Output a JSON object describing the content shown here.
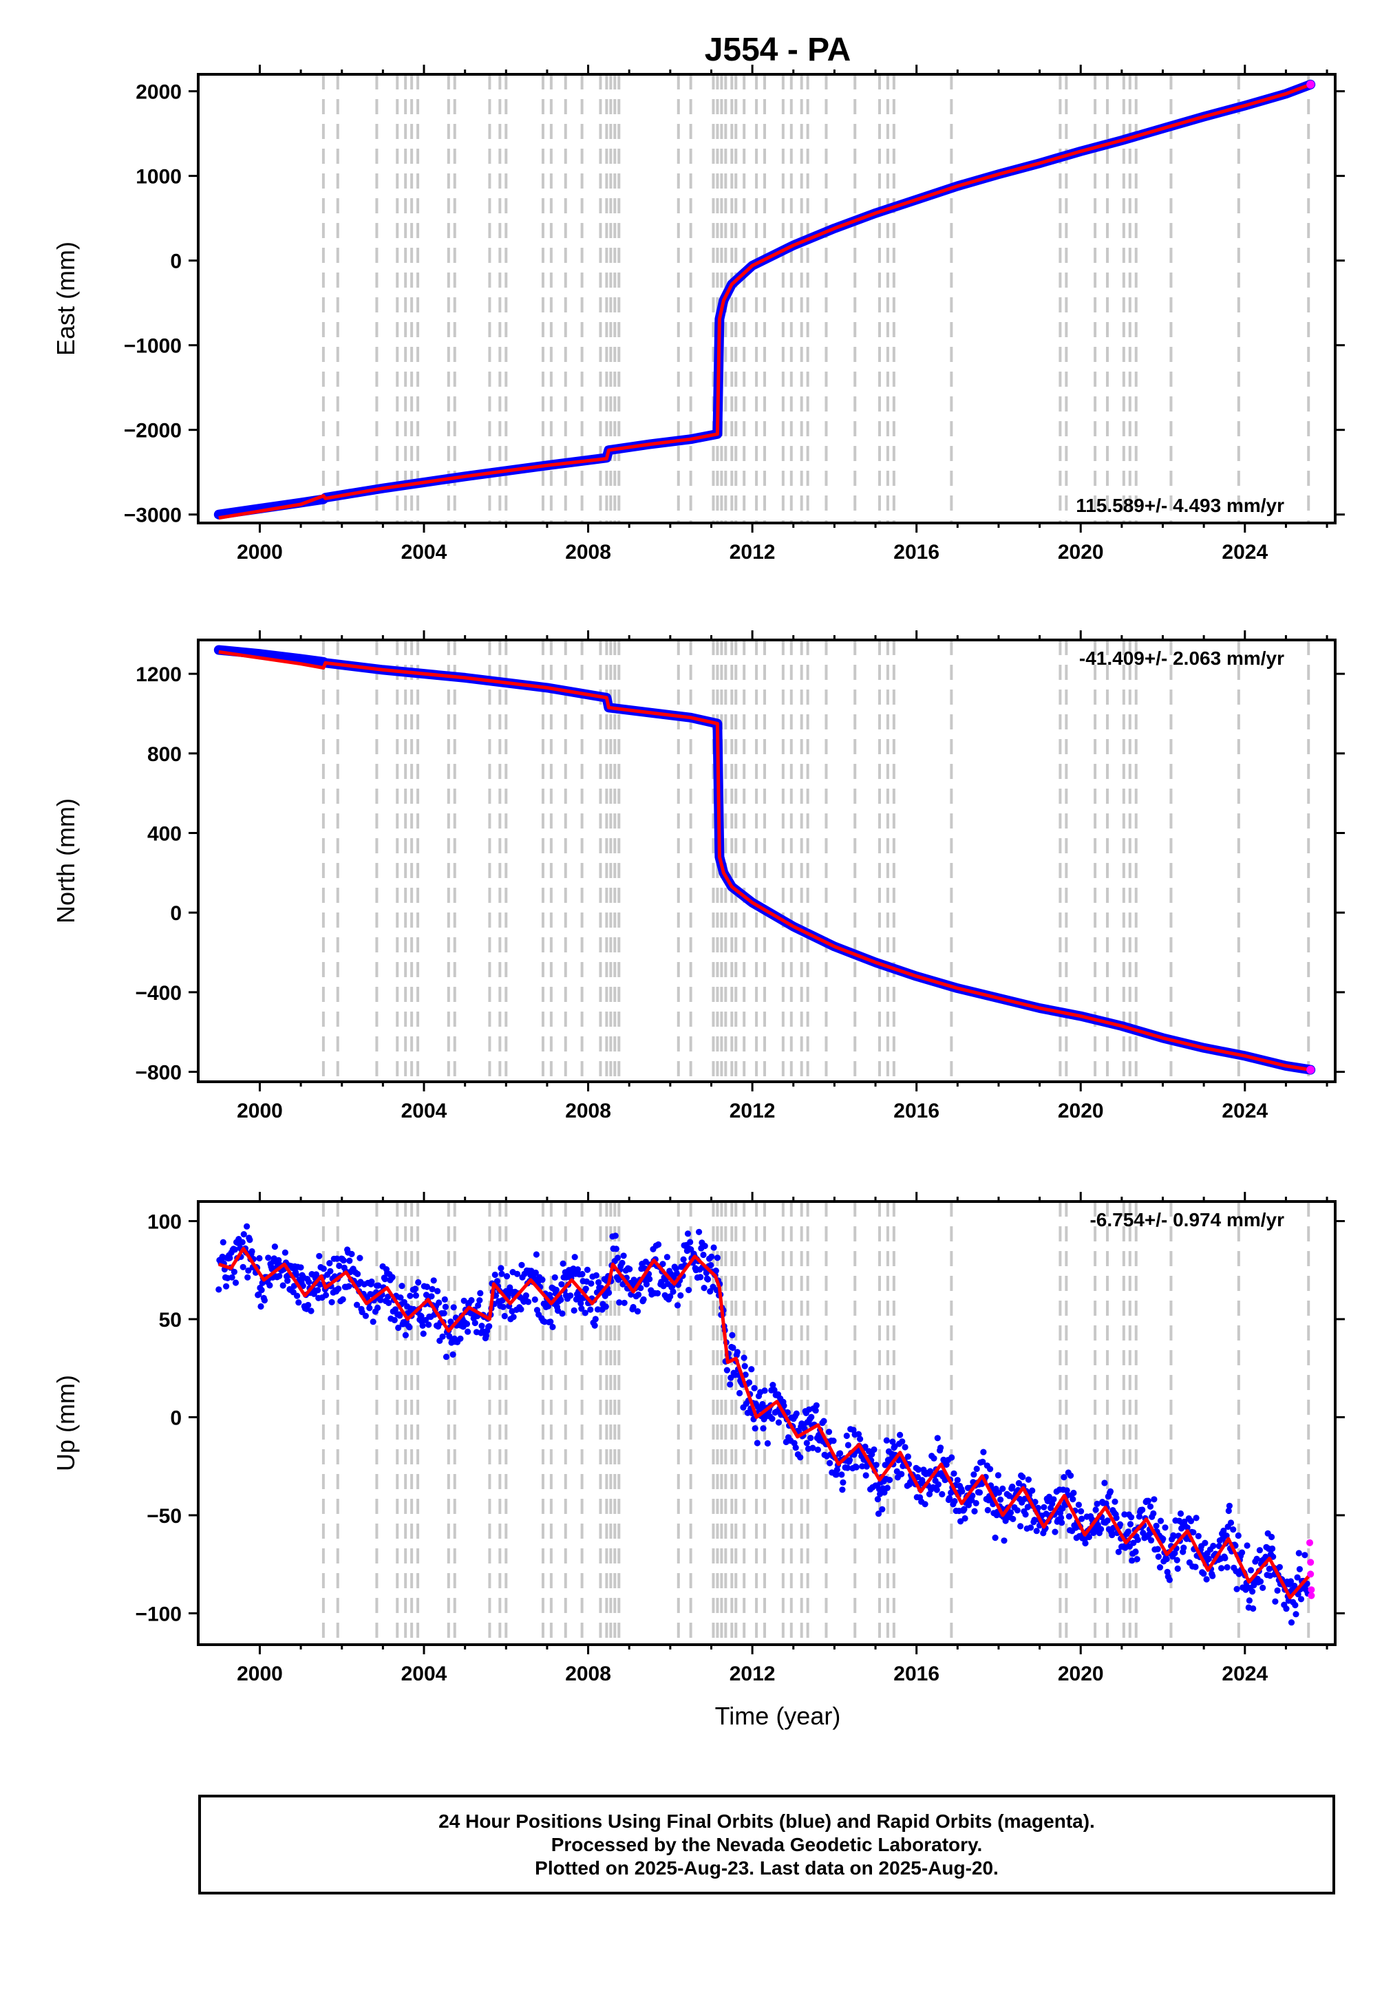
{
  "title": "J554 - PA",
  "x_axis_label": "Time (year)",
  "colors": {
    "final_orbits": "#0000ff",
    "rapid_orbits": "#ff00ff",
    "model_fit": "#ff0000",
    "event_lines": "#c8c8c8"
  },
  "event_lines_years": [
    2001.55,
    2001.9,
    2002.85,
    2003.35,
    2003.55,
    2003.7,
    2003.85,
    2004.6,
    2004.75,
    2005.6,
    2005.85,
    2006.0,
    2006.9,
    2007.1,
    2007.45,
    2007.85,
    2008.3,
    2008.45,
    2008.55,
    2008.65,
    2008.75,
    2010.2,
    2010.5,
    2011.05,
    2011.15,
    2011.25,
    2011.35,
    2011.5,
    2011.6,
    2011.8,
    2012.1,
    2012.3,
    2012.75,
    2012.95,
    2013.2,
    2013.35,
    2013.8,
    2014.5,
    2015.1,
    2015.3,
    2015.45,
    2016.85,
    2019.5,
    2019.65,
    2020.35,
    2020.65,
    2021.05,
    2021.2,
    2021.35,
    2022.2,
    2023.85,
    2025.55
  ],
  "chart_data": [
    {
      "type": "scatter",
      "component": "east",
      "ylabel": "East (mm)",
      "xlim": [
        1998.5,
        2026.2
      ],
      "ylim": [
        -3100,
        2200
      ],
      "x_ticks": [
        2000,
        2004,
        2008,
        2012,
        2016,
        2020,
        2024
      ],
      "y_ticks": [
        -3000,
        -2000,
        -1000,
        0,
        1000,
        2000
      ],
      "y_tick_labels": [
        "−3000",
        "−2000",
        "−1000",
        "0",
        "1000",
        "2000"
      ],
      "x_tick_labels": [
        "2000",
        "2004",
        "2008",
        "2012",
        "2016",
        "2020",
        "2024"
      ],
      "rate_text": "115.589+/- 4.493 mm/yr",
      "rate_position": "bottom-right",
      "series": [
        {
          "style": "final_orbits",
          "x": [
            1999.0,
            2000.0,
            2001.0,
            2001.55,
            2001.6,
            2003.0,
            2005.0,
            2007.0,
            2008.45,
            2008.5,
            2009.5,
            2010.5,
            2011.15,
            2011.2,
            2011.3,
            2011.5,
            2012.0,
            2013.0,
            2014.0,
            2015.0,
            2016.0,
            2017.0,
            2018.0,
            2019.0,
            2020.0,
            2021.0,
            2022.0,
            2023.0,
            2024.0,
            2025.0,
            2025.6
          ],
          "y": [
            -3000,
            -2930,
            -2860,
            -2820,
            -2800,
            -2690,
            -2550,
            -2420,
            -2330,
            -2240,
            -2170,
            -2110,
            -2050,
            -690,
            -470,
            -280,
            -60,
            180,
            380,
            560,
            720,
            880,
            1020,
            1150,
            1290,
            1420,
            1560,
            1700,
            1830,
            1970,
            2080
          ]
        },
        {
          "style": "model_fit",
          "x": [
            1999.0,
            2000.0,
            2001.0,
            2001.55,
            2001.6,
            2003.0,
            2005.0,
            2007.0,
            2008.45,
            2008.5,
            2009.5,
            2010.5,
            2011.15,
            2011.2,
            2011.3,
            2011.5,
            2012.0,
            2013.0,
            2014.0,
            2015.0,
            2016.0,
            2017.0,
            2018.0,
            2019.0,
            2020.0,
            2021.0,
            2022.0,
            2023.0,
            2024.0,
            2025.0,
            2025.6
          ],
          "y": [
            -3040,
            -2960,
            -2880,
            -2780,
            -2810,
            -2690,
            -2550,
            -2420,
            -2340,
            -2240,
            -2170,
            -2110,
            -2050,
            -690,
            -470,
            -280,
            -60,
            180,
            380,
            560,
            720,
            880,
            1020,
            1150,
            1290,
            1420,
            1560,
            1700,
            1830,
            1970,
            2080
          ]
        }
      ]
    },
    {
      "type": "scatter",
      "component": "north",
      "ylabel": "North (mm)",
      "xlim": [
        1998.5,
        2026.2
      ],
      "ylim": [
        -850,
        1370
      ],
      "x_ticks": [
        2000,
        2004,
        2008,
        2012,
        2016,
        2020,
        2024
      ],
      "y_ticks": [
        -800,
        -400,
        0,
        400,
        800,
        1200
      ],
      "y_tick_labels": [
        "−800",
        "−400",
        "0",
        "400",
        "800",
        "1200"
      ],
      "x_tick_labels": [
        "2000",
        "2004",
        "2008",
        "2012",
        "2016",
        "2020",
        "2024"
      ],
      "rate_text": "-41.409+/- 2.063 mm/yr",
      "rate_position": "top-right",
      "series": [
        {
          "style": "final_orbits",
          "x": [
            1999.0,
            2000.0,
            2001.0,
            2001.55,
            2001.6,
            2003.0,
            2005.0,
            2007.0,
            2008.45,
            2008.5,
            2009.5,
            2010.5,
            2011.15,
            2011.2,
            2011.3,
            2011.5,
            2012.0,
            2013.0,
            2014.0,
            2015.0,
            2016.0,
            2017.0,
            2018.0,
            2019.0,
            2020.0,
            2021.0,
            2022.0,
            2023.0,
            2024.0,
            2025.0,
            2025.6
          ],
          "y": [
            1320,
            1300,
            1275,
            1260,
            1255,
            1220,
            1180,
            1130,
            1080,
            1030,
            1005,
            980,
            950,
            280,
            200,
            130,
            50,
            -70,
            -170,
            -250,
            -320,
            -380,
            -430,
            -480,
            -520,
            -570,
            -630,
            -680,
            -720,
            -770,
            -790
          ]
        },
        {
          "style": "model_fit",
          "x": [
            1999.0,
            2000.0,
            2001.0,
            2001.55,
            2001.6,
            2003.0,
            2005.0,
            2007.0,
            2008.45,
            2008.5,
            2009.5,
            2010.5,
            2011.15,
            2011.2,
            2011.3,
            2011.5,
            2012.0,
            2013.0,
            2014.0,
            2015.0,
            2016.0,
            2017.0,
            2018.0,
            2019.0,
            2020.0,
            2021.0,
            2022.0,
            2023.0,
            2024.0,
            2025.0,
            2025.6
          ],
          "y": [
            1310,
            1280,
            1250,
            1230,
            1255,
            1220,
            1180,
            1130,
            1080,
            1030,
            1005,
            980,
            950,
            280,
            200,
            130,
            50,
            -70,
            -170,
            -250,
            -320,
            -380,
            -430,
            -480,
            -520,
            -570,
            -630,
            -680,
            -720,
            -770,
            -790
          ]
        }
      ]
    },
    {
      "type": "scatter",
      "component": "up",
      "ylabel": "Up (mm)",
      "xlim": [
        1998.5,
        2026.2
      ],
      "ylim": [
        -116,
        110
      ],
      "x_ticks": [
        2000,
        2004,
        2008,
        2012,
        2016,
        2020,
        2024
      ],
      "y_ticks": [
        -100,
        -50,
        0,
        50,
        100
      ],
      "y_tick_labels": [
        "−100",
        "−50",
        "0",
        "50",
        "100"
      ],
      "x_tick_labels": [
        "2000",
        "2004",
        "2008",
        "2012",
        "2016",
        "2020",
        "2024"
      ],
      "rate_text": "-6.754+/- 0.974 mm/yr",
      "rate_position": "top-right",
      "series": [
        {
          "style": "model_fit",
          "x": [
            1999.0,
            1999.3,
            1999.6,
            2000.1,
            2000.6,
            2001.1,
            2001.5,
            2001.6,
            2002.1,
            2002.6,
            2003.1,
            2003.6,
            2004.1,
            2004.6,
            2005.1,
            2005.6,
            2005.7,
            2006.1,
            2006.6,
            2007.1,
            2007.6,
            2008.1,
            2008.5,
            2008.6,
            2009.1,
            2009.6,
            2010.1,
            2010.6,
            2011.1,
            2011.2,
            2011.4,
            2011.6,
            2012.1,
            2012.6,
            2013.1,
            2013.6,
            2014.1,
            2014.6,
            2015.1,
            2015.6,
            2016.1,
            2016.6,
            2017.1,
            2017.6,
            2018.1,
            2018.6,
            2019.1,
            2019.6,
            2020.1,
            2020.6,
            2021.1,
            2021.6,
            2022.1,
            2022.6,
            2023.1,
            2023.6,
            2024.1,
            2024.6,
            2025.1,
            2025.6
          ],
          "y": [
            78,
            76,
            86,
            70,
            78,
            62,
            72,
            66,
            74,
            58,
            66,
            50,
            60,
            44,
            56,
            50,
            68,
            58,
            70,
            58,
            70,
            58,
            68,
            78,
            64,
            80,
            68,
            82,
            72,
            66,
            28,
            30,
            0,
            8,
            -10,
            -4,
            -24,
            -14,
            -32,
            -18,
            -38,
            -24,
            -44,
            -30,
            -50,
            -36,
            -56,
            -40,
            -60,
            -46,
            -64,
            -52,
            -70,
            -58,
            -78,
            -62,
            -84,
            -72,
            -92,
            -80
          ]
        },
        {
          "style": "rapid_orbits",
          "x": [
            2025.58,
            2025.6,
            2025.6,
            2025.62,
            2025.62
          ],
          "y": [
            -64,
            -74,
            -80,
            -88,
            -91
          ]
        }
      ]
    }
  ],
  "footer": {
    "line1": "24 Hour Positions Using Final Orbits (blue) and Rapid Orbits (magenta).",
    "line2": "Processed by the Nevada Geodetic Laboratory.",
    "line3": "Plotted on 2025-Aug-23. Last data on 2025-Aug-20."
  }
}
